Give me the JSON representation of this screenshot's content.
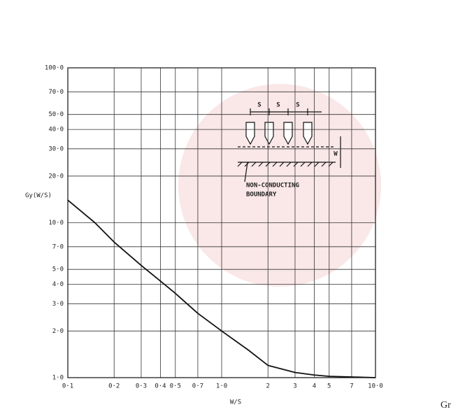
{
  "chart_data": {
    "type": "line",
    "log_x": true,
    "log_y": true,
    "grid": true,
    "xlabel": "W/S",
    "ylabel": "Gy(W/S)",
    "x": [
      0.1,
      0.15,
      0.2,
      0.3,
      0.4,
      0.5,
      0.7,
      1.0,
      1.5,
      2,
      3,
      4,
      5,
      7,
      10
    ],
    "series": [
      {
        "color": "#111111",
        "values": [
          14,
          10,
          7.5,
          5.3,
          4.2,
          3.5,
          2.6,
          2.0,
          1.5,
          1.2,
          1.08,
          1.04,
          1.02,
          1.01,
          1.0
        ]
      }
    ],
    "xlim": [
      0.1,
      10
    ],
    "xticks": [
      {
        "value": 0.1,
        "label": "0·1"
      },
      {
        "value": 0.2,
        "label": "0·2"
      },
      {
        "value": 0.3,
        "label": "0·3"
      },
      {
        "value": 0.4,
        "label": "0·4"
      },
      {
        "value": 0.5,
        "label": "0·5"
      },
      {
        "value": 0.7,
        "label": "0·7"
      },
      {
        "value": 1,
        "label": "1·0"
      },
      2,
      3,
      4,
      5,
      7,
      {
        "value": 10,
        "label": "10·0"
      }
    ],
    "ylim": [
      1,
      100
    ],
    "yticks": [
      {
        "value": 1,
        "label": "1·0"
      },
      {
        "value": 2,
        "label": "2·0"
      },
      {
        "value": 3,
        "label": "3·0"
      },
      {
        "value": 4,
        "label": "4·0"
      },
      {
        "value": 5,
        "label": "5·0"
      },
      {
        "value": 7,
        "label": "7·0"
      },
      {
        "value": 10,
        "label": "10·0"
      },
      {
        "value": 20,
        "label": "20·0"
      },
      {
        "value": 30,
        "label": "30·0"
      },
      {
        "value": 40,
        "label": "40·0"
      },
      {
        "value": 50,
        "label": "50·0"
      },
      {
        "value": 70,
        "label": "70·0"
      },
      {
        "value": 100,
        "label": "100·0"
      }
    ],
    "annotations": [
      "S",
      "S",
      "S",
      "W",
      "NON-CONDUCTING",
      "BOUNDARY"
    ],
    "caption": "Gr"
  }
}
